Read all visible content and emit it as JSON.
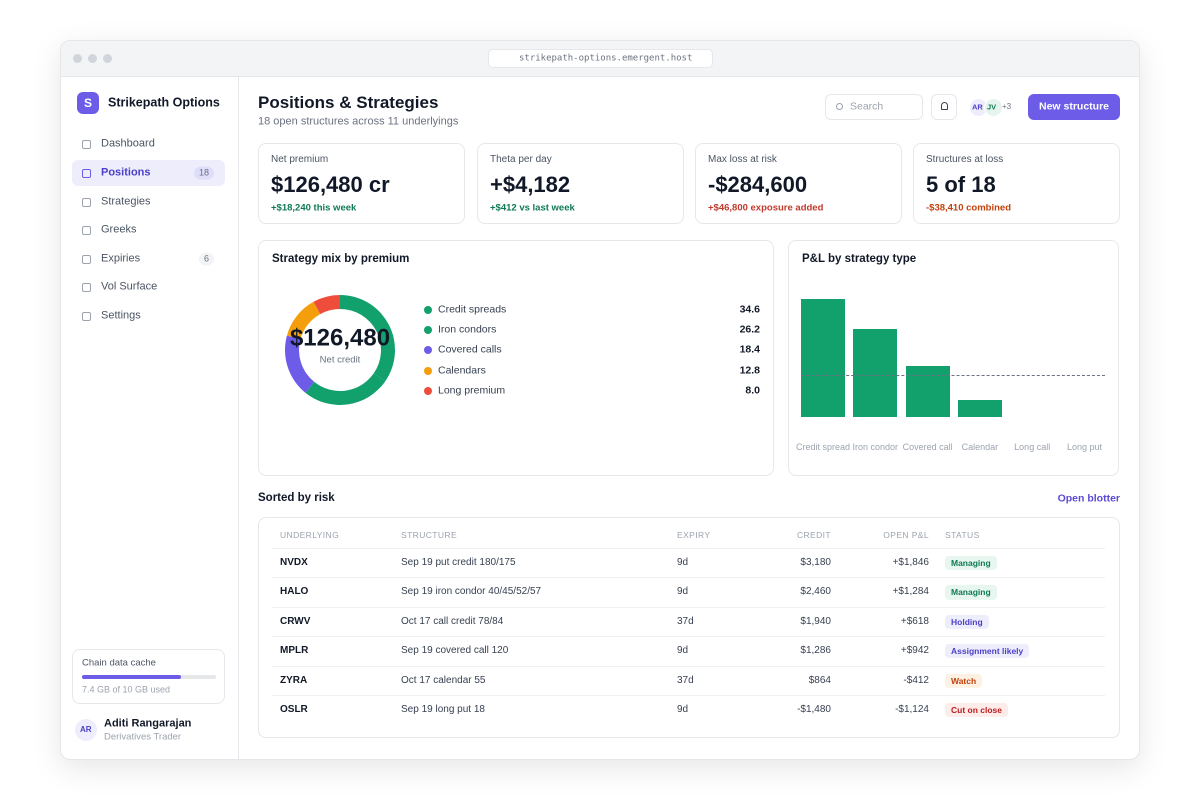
{
  "browser": {
    "url": "strikepath-options.emergent.host"
  },
  "sidebar": {
    "logo_letter": "S",
    "brand": "Strikepath Options",
    "nav": [
      {
        "label": "Dashboard"
      },
      {
        "label": "Positions",
        "badge": 18,
        "active": true
      },
      {
        "label": "Strategies"
      },
      {
        "label": "Greeks"
      },
      {
        "label": "Expiries",
        "badge": 6
      },
      {
        "label": "Vol Surface"
      },
      {
        "label": "Settings"
      }
    ],
    "cache": {
      "title": "Chain data cache",
      "used": 7.4,
      "total": 10,
      "usage_label": "7.4 GB of 10 GB used"
    },
    "user": {
      "initials": "AR",
      "name": "Aditi Rangarajan",
      "role": "Derivatives Trader"
    }
  },
  "header": {
    "title": "Positions & Strategies",
    "subtitle": "18 open structures across 11 underlyings",
    "search_placeholder": "Search",
    "avatars": [
      "AR",
      "JV"
    ],
    "more_avatars": "+3",
    "button": "New structure"
  },
  "kpis": [
    {
      "label": "Net premium",
      "value": "$126,480 cr",
      "delta": "+$18,240 this week",
      "delta_color": "#0f7a52"
    },
    {
      "label": "Theta per day",
      "value": "+$4,182",
      "delta": "+$412 vs last week",
      "delta_color": "#0f7a52"
    },
    {
      "label": "Max loss at risk",
      "value": "-$284,600",
      "delta": "+$46,800 exposure added",
      "delta_color": "#c0392b"
    },
    {
      "label": "Structures at loss",
      "value": "5 of 18",
      "delta": "-$38,410 combined",
      "delta_color": "#c2410c"
    }
  ],
  "chart_data": [
    {
      "type": "pie",
      "title": "Strategy mix by premium",
      "center_value": "$126,480",
      "center_label": "Net credit",
      "categories": [
        "Credit spreads",
        "Iron condors",
        "Covered calls",
        "Calendars",
        "Long premium"
      ],
      "values": [
        34.6,
        26.2,
        18.4,
        12.8,
        8.0
      ],
      "value_labels": [
        "34.6",
        "26.2",
        "18.4",
        "12.8",
        "8.0"
      ],
      "colors": [
        "#12a06c",
        "#12a06c",
        "#6c5ce7",
        "#f59e0b",
        "#ef4d3c"
      ]
    },
    {
      "type": "bar",
      "title": "P&L by strategy type",
      "categories": [
        "Credit spread",
        "Iron condor",
        "Covered call",
        "Calendar",
        "Long call",
        "Long put"
      ],
      "values": [
        118,
        88,
        51,
        17,
        0,
        0
      ],
      "ylim": [
        0,
        128
      ],
      "color": "#12a06c"
    }
  ],
  "table": {
    "title": "Sorted by risk",
    "link": "Open blotter",
    "columns": [
      "UNDERLYING",
      "STRUCTURE",
      "EXPIRY",
      "CREDIT",
      "OPEN P&L",
      "STATUS"
    ],
    "rows": [
      [
        "NVDX",
        "Sep 19 put credit 180/175",
        "9d",
        "$3,180",
        "+$1,846",
        "Managing"
      ],
      [
        "HALO",
        "Sep 19 iron condor 40/45/52/57",
        "9d",
        "$2,460",
        "+$1,284",
        "Managing"
      ],
      [
        "CRWV",
        "Oct 17 call credit 78/84",
        "37d",
        "$1,940",
        "+$618",
        "Holding"
      ],
      [
        "MPLR",
        "Sep 19 covered call 120",
        "9d",
        "$1,286",
        "+$942",
        "Assignment likely"
      ],
      [
        "ZYRA",
        "Oct 17 calendar 55",
        "37d",
        "$864",
        "-$412",
        "Watch"
      ],
      [
        "OSLR",
        "Sep 19 long put 18",
        "9d",
        "-$1,480",
        "-$1,124",
        "Cut on close"
      ]
    ],
    "status_colors": [
      "green",
      "green",
      "purple",
      "purple",
      "orange",
      "red"
    ]
  }
}
